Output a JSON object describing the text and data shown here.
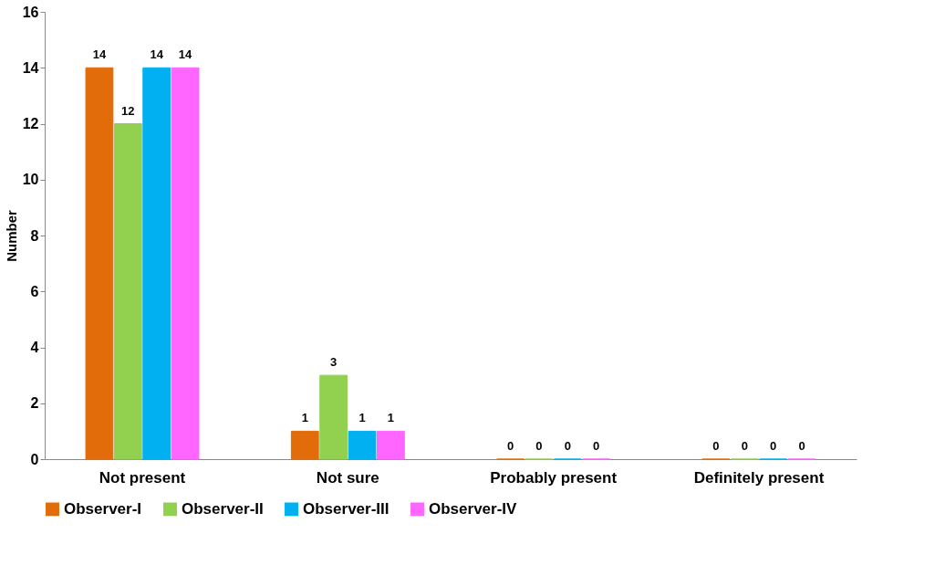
{
  "chart_data": {
    "type": "bar",
    "ylabel": "Number",
    "categories": [
      "Not present",
      "Not sure",
      "Probably present",
      "Definitely present"
    ],
    "series": [
      {
        "name": "Observer-I",
        "color": "#e36c0a",
        "values": [
          14,
          1,
          0,
          0
        ]
      },
      {
        "name": "Observer-II",
        "color": "#92d050",
        "values": [
          12,
          3,
          0,
          0
        ]
      },
      {
        "name": "Observer-III",
        "color": "#00b0f0",
        "values": [
          14,
          1,
          0,
          0
        ]
      },
      {
        "name": "Observer-IV",
        "color": "#ff66ff",
        "values": [
          14,
          1,
          0,
          0
        ]
      }
    ],
    "ylim": [
      0,
      16
    ],
    "yticks": [
      0,
      2,
      4,
      6,
      8,
      10,
      12,
      14,
      16
    ],
    "grid": false,
    "legend": "bottom",
    "data_labels": true
  }
}
